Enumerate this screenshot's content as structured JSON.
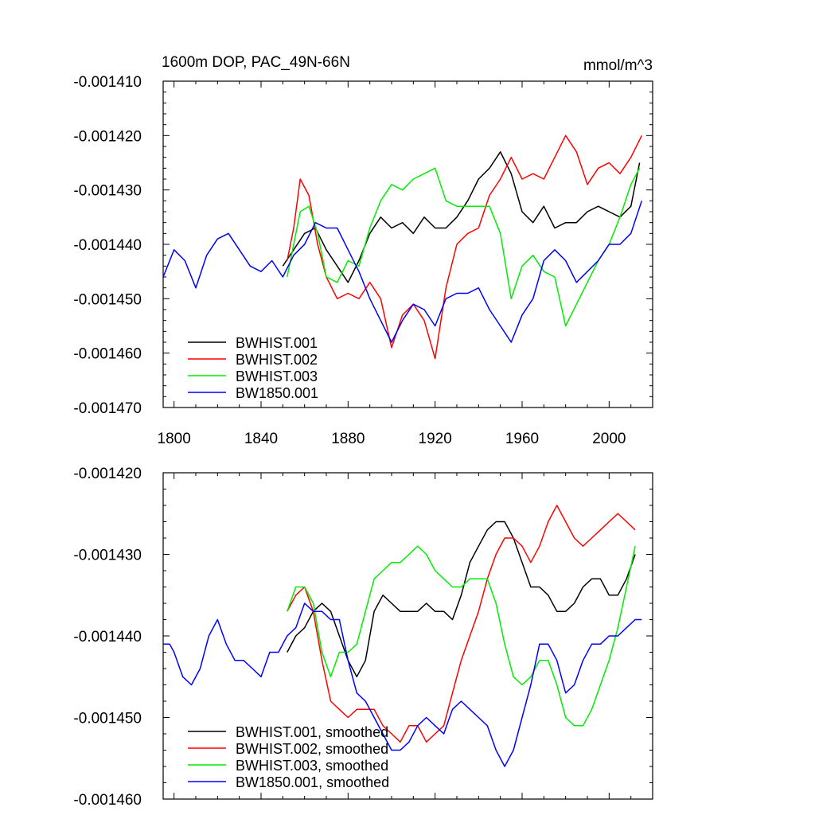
{
  "chart_data": [
    {
      "type": "line",
      "title": "1600m DOP, PAC_49N-66N",
      "units": "mmol/m^3",
      "xlim": [
        1795,
        2020
      ],
      "ylim": [
        -0.00147,
        -0.00141
      ],
      "xticks": [
        1800,
        1840,
        1880,
        1920,
        1960,
        2000
      ],
      "xtick_labels": [
        "1800",
        "1840",
        "1880",
        "1920",
        "1960",
        "2000"
      ],
      "yticks": [
        -0.00141,
        -0.00142,
        -0.00143,
        -0.00144,
        -0.00145,
        -0.00146,
        -0.00147
      ],
      "ytick_labels": [
        "-0.001410",
        "-0.001420",
        "-0.001430",
        "-0.001440",
        "-0.001450",
        "-0.001460",
        "-0.001470"
      ],
      "legend_position": "bottom-left",
      "series": [
        {
          "name": "BWHIST.001",
          "color": "#000000",
          "x": [
            1850,
            1855,
            1860,
            1865,
            1870,
            1875,
            1880,
            1885,
            1890,
            1895,
            1900,
            1905,
            1910,
            1915,
            1920,
            1925,
            1930,
            1935,
            1940,
            1945,
            1950,
            1955,
            1960,
            1965,
            1970,
            1975,
            1980,
            1985,
            1990,
            1995,
            2000,
            2005,
            2010,
            2014
          ],
          "values": [
            -0.001444,
            -0.001441,
            -0.001438,
            -0.001437,
            -0.001441,
            -0.001444,
            -0.001447,
            -0.001443,
            -0.001438,
            -0.001435,
            -0.001437,
            -0.001436,
            -0.001438,
            -0.001435,
            -0.001437,
            -0.001437,
            -0.001435,
            -0.001432,
            -0.001428,
            -0.001426,
            -0.001423,
            -0.001427,
            -0.001434,
            -0.001436,
            -0.001433,
            -0.001437,
            -0.001436,
            -0.001436,
            -0.001434,
            -0.001433,
            -0.001434,
            -0.001435,
            -0.001433,
            -0.001425
          ]
        },
        {
          "name": "BWHIST.002",
          "color": "#ff0000",
          "x": [
            1852,
            1855,
            1858,
            1862,
            1866,
            1870,
            1875,
            1880,
            1885,
            1890,
            1895,
            1900,
            1905,
            1910,
            1915,
            1920,
            1925,
            1930,
            1935,
            1940,
            1945,
            1950,
            1955,
            1960,
            1965,
            1970,
            1975,
            1980,
            1985,
            1990,
            1995,
            2000,
            2005,
            2010,
            2015
          ],
          "values": [
            -0.001443,
            -0.001437,
            -0.001428,
            -0.001431,
            -0.00144,
            -0.001446,
            -0.00145,
            -0.001449,
            -0.00145,
            -0.001447,
            -0.00145,
            -0.001459,
            -0.001453,
            -0.001451,
            -0.001454,
            -0.001461,
            -0.001448,
            -0.00144,
            -0.001438,
            -0.001437,
            -0.001431,
            -0.001428,
            -0.001424,
            -0.001428,
            -0.001427,
            -0.001428,
            -0.001424,
            -0.00142,
            -0.001423,
            -0.001429,
            -0.001426,
            -0.001425,
            -0.001427,
            -0.001424,
            -0.00142
          ]
        },
        {
          "name": "BWHIST.003",
          "color": "#00ee00",
          "x": [
            1852,
            1855,
            1858,
            1862,
            1866,
            1870,
            1875,
            1880,
            1885,
            1890,
            1895,
            1900,
            1905,
            1910,
            1915,
            1920,
            1925,
            1930,
            1935,
            1940,
            1945,
            1950,
            1955,
            1960,
            1965,
            1970,
            1975,
            1980,
            1985,
            1990,
            1995,
            2000,
            2005,
            2010,
            2014
          ],
          "values": [
            -0.001446,
            -0.00144,
            -0.001434,
            -0.001433,
            -0.001438,
            -0.001446,
            -0.001447,
            -0.001443,
            -0.001444,
            -0.001437,
            -0.001432,
            -0.001429,
            -0.00143,
            -0.001428,
            -0.001427,
            -0.001426,
            -0.001432,
            -0.001433,
            -0.001433,
            -0.001433,
            -0.001433,
            -0.001438,
            -0.00145,
            -0.001444,
            -0.001442,
            -0.001445,
            -0.001446,
            -0.001455,
            -0.001451,
            -0.001447,
            -0.001443,
            -0.00144,
            -0.001435,
            -0.001429,
            -0.001426
          ]
        },
        {
          "name": "BW1850.001",
          "color": "#0000ff",
          "x": [
            1795,
            1800,
            1805,
            1810,
            1815,
            1820,
            1825,
            1830,
            1835,
            1840,
            1845,
            1850,
            1855,
            1860,
            1865,
            1870,
            1875,
            1880,
            1885,
            1890,
            1895,
            1900,
            1905,
            1910,
            1915,
            1920,
            1925,
            1930,
            1935,
            1940,
            1945,
            1950,
            1955,
            1960,
            1965,
            1970,
            1975,
            1980,
            1985,
            1990,
            1995,
            2000,
            2005,
            2010,
            2015
          ],
          "values": [
            -0.001446,
            -0.001441,
            -0.001443,
            -0.001448,
            -0.001442,
            -0.001439,
            -0.001438,
            -0.001441,
            -0.001444,
            -0.001445,
            -0.001443,
            -0.001446,
            -0.001442,
            -0.00144,
            -0.001436,
            -0.001437,
            -0.001437,
            -0.001441,
            -0.001445,
            -0.00145,
            -0.001454,
            -0.001458,
            -0.001454,
            -0.001451,
            -0.001452,
            -0.001455,
            -0.00145,
            -0.001449,
            -0.001449,
            -0.001448,
            -0.001452,
            -0.001455,
            -0.001458,
            -0.001453,
            -0.00145,
            -0.001443,
            -0.001441,
            -0.001443,
            -0.001447,
            -0.001445,
            -0.001443,
            -0.00144,
            -0.00144,
            -0.001438,
            -0.001432
          ]
        }
      ]
    },
    {
      "type": "line",
      "xlim": [
        1795,
        2020
      ],
      "ylim": [
        -0.00146,
        -0.00142
      ],
      "xticks": [
        1800,
        1840,
        1880,
        1920,
        1960,
        2000
      ],
      "yticks": [
        -0.00142,
        -0.00143,
        -0.00144,
        -0.00145,
        -0.00146
      ],
      "ytick_labels": [
        "-0.001420",
        "-0.001430",
        "-0.001440",
        "-0.001450",
        "-0.001460"
      ],
      "legend_position": "bottom-left",
      "series": [
        {
          "name": "BWHIST.001, smoothed",
          "color": "#000000",
          "x": [
            1852,
            1856,
            1860,
            1864,
            1868,
            1872,
            1876,
            1880,
            1884,
            1888,
            1892,
            1896,
            1900,
            1904,
            1908,
            1912,
            1916,
            1920,
            1924,
            1928,
            1932,
            1936,
            1940,
            1944,
            1948,
            1952,
            1956,
            1960,
            1964,
            1968,
            1972,
            1976,
            1980,
            1984,
            1988,
            1992,
            1996,
            2000,
            2004,
            2008,
            2012
          ],
          "values": [
            -0.001442,
            -0.00144,
            -0.001439,
            -0.001437,
            -0.001436,
            -0.001437,
            -0.00144,
            -0.001443,
            -0.001445,
            -0.001443,
            -0.001437,
            -0.001435,
            -0.001436,
            -0.001437,
            -0.001437,
            -0.001437,
            -0.001436,
            -0.001437,
            -0.001437,
            -0.001438,
            -0.001435,
            -0.001431,
            -0.001429,
            -0.001427,
            -0.001426,
            -0.001426,
            -0.001428,
            -0.001431,
            -0.001434,
            -0.001434,
            -0.001435,
            -0.001437,
            -0.001437,
            -0.001436,
            -0.001434,
            -0.001433,
            -0.001433,
            -0.001435,
            -0.001435,
            -0.001433,
            -0.00143
          ]
        },
        {
          "name": "BWHIST.002, smoothed",
          "color": "#ff0000",
          "x": [
            1852,
            1856,
            1860,
            1864,
            1868,
            1872,
            1876,
            1880,
            1884,
            1888,
            1892,
            1896,
            1900,
            1904,
            1908,
            1912,
            1916,
            1920,
            1924,
            1928,
            1932,
            1936,
            1940,
            1944,
            1948,
            1952,
            1956,
            1960,
            1964,
            1968,
            1972,
            1976,
            1980,
            1984,
            1988,
            1992,
            1996,
            2000,
            2004,
            2008,
            2012
          ],
          "values": [
            -0.001437,
            -0.001435,
            -0.001434,
            -0.001437,
            -0.001443,
            -0.001448,
            -0.001449,
            -0.00145,
            -0.001449,
            -0.001449,
            -0.001449,
            -0.001451,
            -0.001452,
            -0.001453,
            -0.001451,
            -0.001451,
            -0.001453,
            -0.001452,
            -0.001451,
            -0.001447,
            -0.001443,
            -0.00144,
            -0.001437,
            -0.001433,
            -0.00143,
            -0.001428,
            -0.001428,
            -0.001429,
            -0.001431,
            -0.001429,
            -0.001426,
            -0.001424,
            -0.001426,
            -0.001428,
            -0.001429,
            -0.001428,
            -0.001427,
            -0.001426,
            -0.001425,
            -0.001426,
            -0.001427
          ]
        },
        {
          "name": "BWHIST.003, smoothed",
          "color": "#00ee00",
          "x": [
            1852,
            1856,
            1860,
            1864,
            1868,
            1872,
            1876,
            1880,
            1884,
            1888,
            1892,
            1896,
            1900,
            1904,
            1908,
            1912,
            1916,
            1920,
            1924,
            1928,
            1932,
            1936,
            1940,
            1944,
            1948,
            1952,
            1956,
            1960,
            1964,
            1968,
            1972,
            1976,
            1980,
            1984,
            1988,
            1992,
            1996,
            2000,
            2004,
            2008,
            2012
          ],
          "values": [
            -0.001437,
            -0.001434,
            -0.001434,
            -0.001436,
            -0.001442,
            -0.001445,
            -0.001442,
            -0.001442,
            -0.001441,
            -0.001437,
            -0.001433,
            -0.001432,
            -0.001431,
            -0.001431,
            -0.00143,
            -0.001429,
            -0.00143,
            -0.001432,
            -0.001433,
            -0.001434,
            -0.001434,
            -0.001433,
            -0.001433,
            -0.001433,
            -0.001436,
            -0.001441,
            -0.001445,
            -0.001446,
            -0.001445,
            -0.001443,
            -0.001443,
            -0.001446,
            -0.00145,
            -0.001451,
            -0.001451,
            -0.001449,
            -0.001446,
            -0.001443,
            -0.001439,
            -0.001434,
            -0.001429
          ]
        },
        {
          "name": "BW1850.001, smoothed",
          "color": "#0000ff",
          "x": [
            1795,
            1798,
            1800,
            1804,
            1808,
            1812,
            1816,
            1820,
            1824,
            1828,
            1832,
            1836,
            1840,
            1844,
            1848,
            1852,
            1856,
            1860,
            1864,
            1868,
            1872,
            1876,
            1880,
            1884,
            1888,
            1892,
            1896,
            1900,
            1904,
            1908,
            1912,
            1916,
            1920,
            1924,
            1928,
            1932,
            1936,
            1940,
            1944,
            1948,
            1952,
            1956,
            1960,
            1964,
            1968,
            1972,
            1976,
            1980,
            1984,
            1988,
            1992,
            1996,
            2000,
            2004,
            2008,
            2012,
            2015
          ],
          "values": [
            -0.001441,
            -0.001441,
            -0.001442,
            -0.001445,
            -0.001446,
            -0.001444,
            -0.00144,
            -0.001438,
            -0.001441,
            -0.001443,
            -0.001443,
            -0.001444,
            -0.001445,
            -0.001442,
            -0.001442,
            -0.00144,
            -0.001439,
            -0.001436,
            -0.001437,
            -0.001437,
            -0.001438,
            -0.001438,
            -0.001443,
            -0.001447,
            -0.001448,
            -0.00145,
            -0.001452,
            -0.001454,
            -0.001454,
            -0.001453,
            -0.001451,
            -0.00145,
            -0.001451,
            -0.001452,
            -0.001449,
            -0.001448,
            -0.001449,
            -0.00145,
            -0.001451,
            -0.001454,
            -0.001456,
            -0.001454,
            -0.00145,
            -0.001446,
            -0.001441,
            -0.001441,
            -0.001443,
            -0.001447,
            -0.001446,
            -0.001443,
            -0.001441,
            -0.001441,
            -0.00144,
            -0.00144,
            -0.001439,
            -0.001438,
            -0.001438
          ]
        }
      ]
    }
  ]
}
